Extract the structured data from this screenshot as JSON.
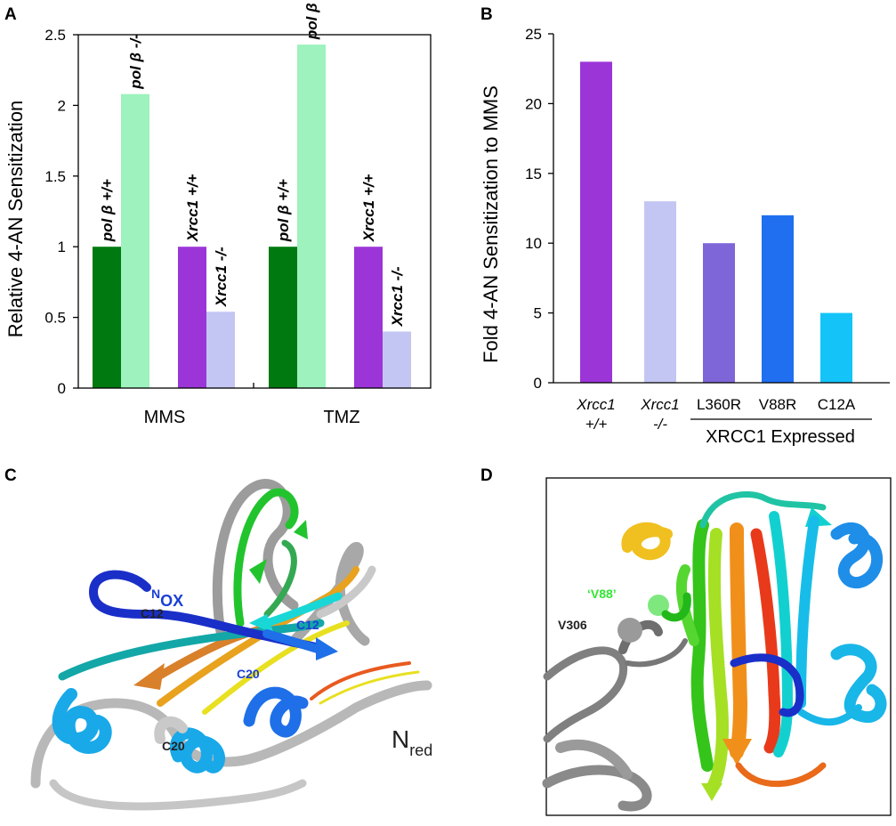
{
  "panels": {
    "A": "A",
    "B": "B",
    "C": "C",
    "D": "D"
  },
  "chart_data": [
    {
      "type": "bar",
      "panel": "A",
      "ylabel": "Relative 4-AN Sensitization",
      "xlabel": "",
      "ylim": [
        0,
        2.5
      ],
      "yticks": [
        "0",
        "0.5",
        "1",
        "1.5",
        "2",
        "2.5"
      ],
      "ytick_values": [
        0,
        0.5,
        1,
        1.5,
        2,
        2.5
      ],
      "groups": [
        "MMS",
        "TMZ"
      ],
      "bars": [
        {
          "group": "MMS",
          "label": "pol β +/+",
          "value": 1.0,
          "color": "#007a10"
        },
        {
          "group": "MMS",
          "label": "pol β -/-",
          "value": 2.08,
          "color": "#9df2bd"
        },
        {
          "group": "MMS",
          "label": "Xrcc1 +/+",
          "value": 1.0,
          "color": "#9b35d8"
        },
        {
          "group": "MMS",
          "label": "Xrcc1 -/-",
          "value": 0.54,
          "color": "#c3c6f2"
        },
        {
          "group": "TMZ",
          "label": "pol β +/+",
          "value": 1.0,
          "color": "#007a10"
        },
        {
          "group": "TMZ",
          "label": "pol β -/-",
          "value": 2.43,
          "color": "#9df2bd"
        },
        {
          "group": "TMZ",
          "label": "Xrcc1 +/+",
          "value": 1.0,
          "color": "#9b35d8"
        },
        {
          "group": "TMZ",
          "label": "Xrcc1 -/-",
          "value": 0.4,
          "color": "#c3c6f2"
        }
      ]
    },
    {
      "type": "bar",
      "panel": "B",
      "ylabel": "Fold 4-AN Sensitization to MMS",
      "xlabel": "XRCC1 Expressed",
      "ylim": [
        0,
        25
      ],
      "yticks": [
        "0",
        "5",
        "10",
        "15",
        "20",
        "25"
      ],
      "ytick_values": [
        0,
        5,
        10,
        15,
        20,
        25
      ],
      "categories": [
        {
          "line1": "Xrcc1",
          "line2": "+/+",
          "italic": true,
          "value": 23,
          "color": "#9b35d8"
        },
        {
          "line1": "Xrcc1",
          "line2": "-/-",
          "italic": true,
          "value": 13,
          "color": "#c3c6f2"
        },
        {
          "line1": "L360R",
          "line2": "",
          "italic": false,
          "value": 10,
          "color": "#7f66d8"
        },
        {
          "line1": "V88R",
          "line2": "",
          "italic": false,
          "value": 12,
          "color": "#1f6ff0"
        },
        {
          "line1": "C12A",
          "line2": "",
          "italic": false,
          "value": 5,
          "color": "#14c4f8"
        }
      ]
    }
  ],
  "structure_c": {
    "n_ox": "N",
    "n_ox_sub": "OX",
    "n_red": "N",
    "n_red_sub": "red",
    "c12_black": "C12",
    "c12_blue": "C12",
    "c20_blue": "C20",
    "c20_black": "C20"
  },
  "structure_d": {
    "v88": "‘V88’",
    "v306": "V306"
  },
  "colors": {
    "blue_label": "#1a3fd6",
    "green_label": "#33e633",
    "dark_label": "#222222"
  }
}
